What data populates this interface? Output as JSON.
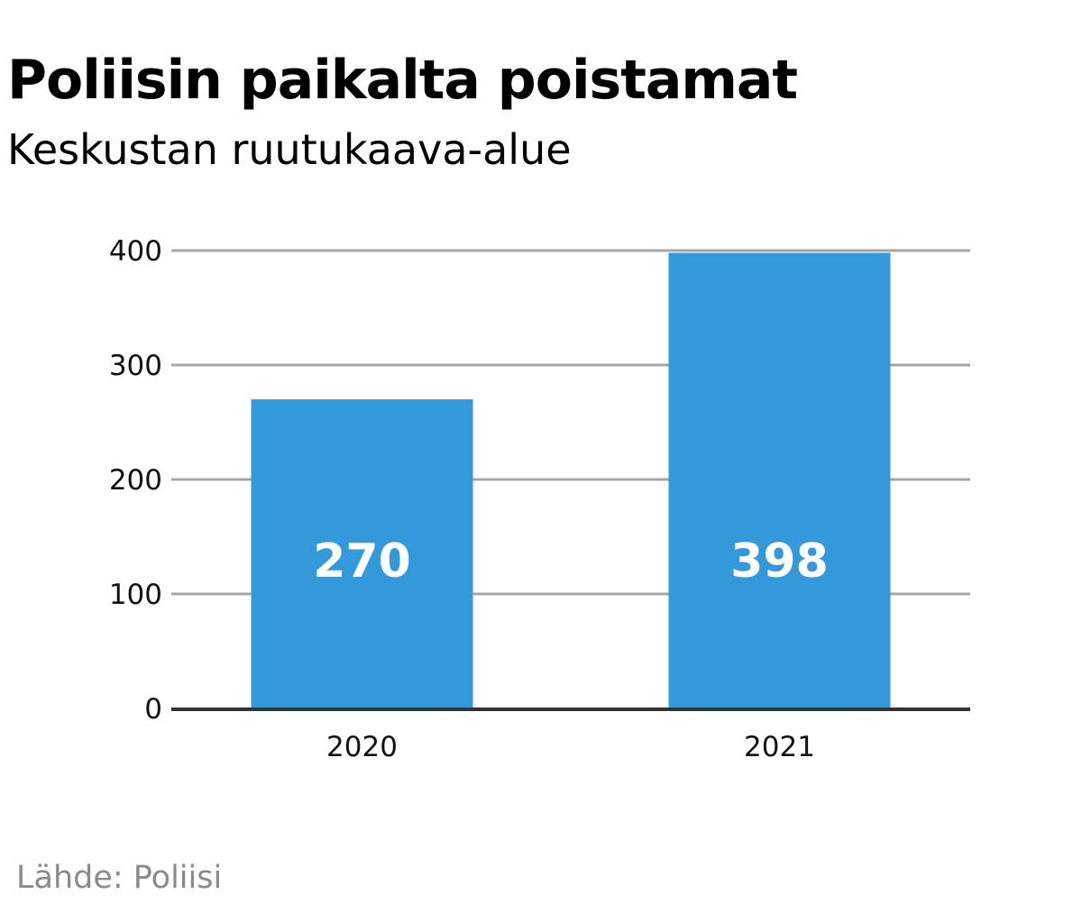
{
  "chart_data": {
    "type": "bar",
    "title": "Poliisin paikalta poistamat",
    "subtitle": "Keskustan ruutukaava-alue",
    "categories": [
      "2020",
      "2021"
    ],
    "values": [
      270,
      398
    ],
    "data_labels": [
      "270",
      "398"
    ],
    "xlabel": "",
    "ylabel": "",
    "ylim": [
      0,
      400
    ],
    "yticks": [
      "0",
      "100",
      "200",
      "300",
      "400"
    ],
    "grid": true,
    "legend": "none",
    "bar_color": "#3399db",
    "grid_color": "#a6a6a6",
    "axis_color": "#333333",
    "source": "Lähde: Poliisi"
  }
}
